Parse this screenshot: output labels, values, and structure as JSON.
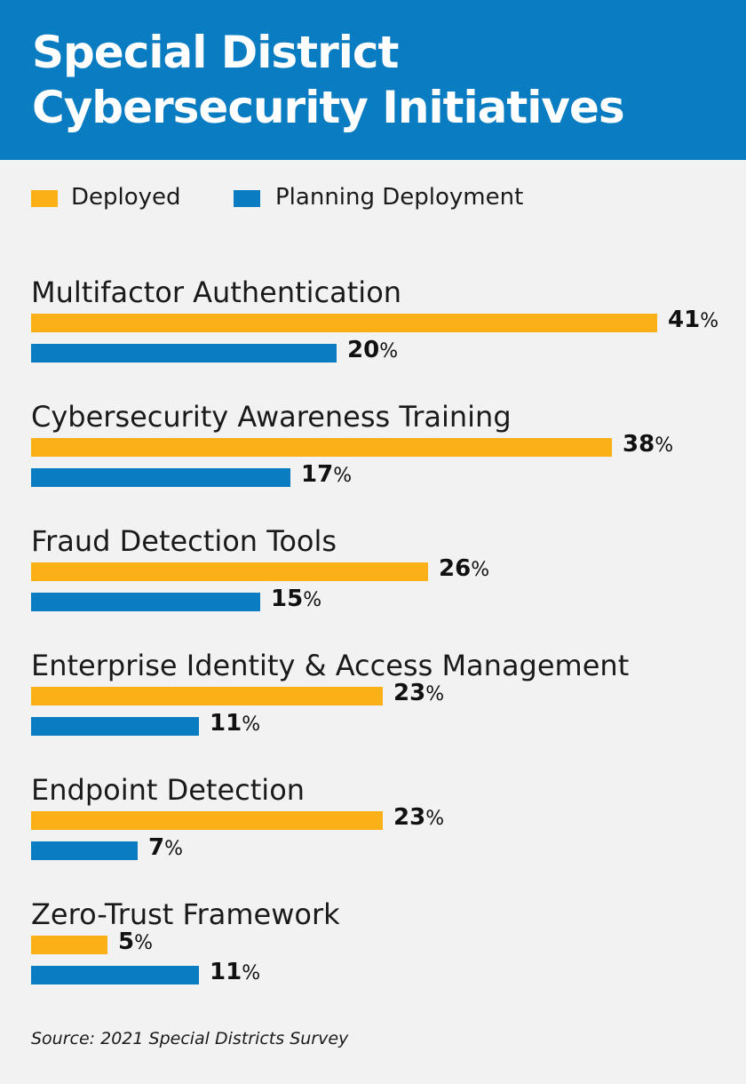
{
  "title": [
    "Special District",
    "Cybersecurity Initiatives"
  ],
  "source": "Source: 2021 Special Districts Survey",
  "colors": {
    "header": "#0a7cc2",
    "deployed": "#fbb017",
    "planning": "#0a7cc2"
  },
  "chart_data": {
    "type": "bar",
    "orientation": "horizontal",
    "title": "Special District Cybersecurity Initiatives",
    "value_unit": "%",
    "legend_position": "top-left",
    "categories": [
      "Multifactor Authentication",
      "Cybersecurity Awareness Training",
      "Fraud Detection Tools",
      "Enterprise Identity & Access Management",
      "Endpoint Detection",
      "Zero-Trust Framework"
    ],
    "series": [
      {
        "name": "Deployed",
        "color": "#fbb017",
        "values": [
          41,
          38,
          26,
          23,
          23,
          5
        ]
      },
      {
        "name": "Planning Deployment",
        "color": "#0a7cc2",
        "values": [
          20,
          17,
          15,
          11,
          7,
          11
        ]
      }
    ]
  }
}
